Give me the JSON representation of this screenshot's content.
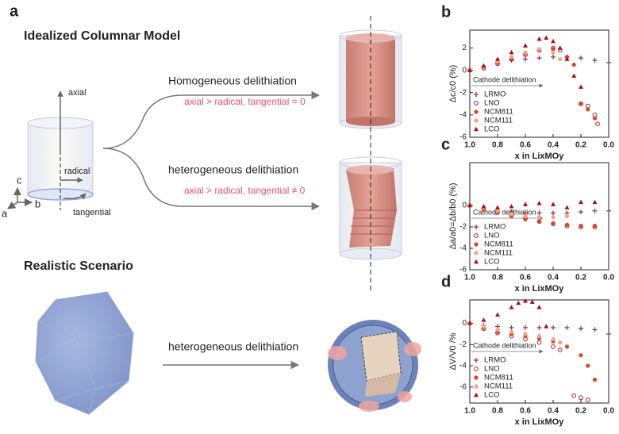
{
  "diagram": {
    "panel": "a",
    "title_top": "Idealized Columnar Model",
    "title_bottom": "Realistic Scenario",
    "homogeneous": "Homogeneous delithiation",
    "homogeneous_note": "axial > radical, tangential = 0",
    "heterogeneous": "heterogeneous delithiation",
    "heterogeneous_note": "axial > radical, tangential ≠ 0",
    "realistic_arrow": "heterogeneous delithiation",
    "axial": "axial",
    "radical": "radical",
    "tangential": "tangential",
    "axis_c": "c",
    "axis_b": "b",
    "axis_a": "a"
  },
  "chart_data": [
    {
      "type": "scatter",
      "panel": "b",
      "ylabel": "Δc/c0 (%)",
      "xlabel": "x in LixMOy",
      "annotation": "Cathode delithiation",
      "xlim": [
        1.0,
        0.0
      ],
      "xticks": [
        {
          "value": 1,
          "label": "1.0"
        },
        0.8,
        0.6,
        0.4,
        0.2,
        {
          "value": 0,
          "label": "0.0"
        }
      ],
      "ylim": [
        -6,
        3.6
      ],
      "yticks": [
        2,
        0,
        -2,
        -4,
        -6
      ],
      "legend": "lower left",
      "series": [
        {
          "name": "LRMO",
          "color": "#8b3a62",
          "marker": "plus",
          "x": [
            1.0,
            0.9,
            0.8,
            0.7,
            0.6,
            0.5,
            0.4,
            0.3,
            0.2,
            0.1,
            0.0
          ],
          "values": [
            0,
            0.3,
            0.6,
            0.9,
            1.0,
            1.1,
            1.2,
            1.2,
            1.1,
            0.9,
            0.7
          ]
        },
        {
          "name": "LNO",
          "color": "#a8182a",
          "marker": "open-circle",
          "x": [
            1.0,
            0.9,
            0.8,
            0.7,
            0.6,
            0.5,
            0.4,
            0.35,
            0.2,
            0.15,
            0.1,
            0.08
          ],
          "values": [
            0,
            0.2,
            0.6,
            1.0,
            1.4,
            1.8,
            2.0,
            1.8,
            -3.0,
            -3.2,
            -4.0,
            -4.8
          ]
        },
        {
          "name": "NCM811",
          "color": "#d9472b",
          "marker": "circle",
          "x": [
            1.0,
            0.9,
            0.8,
            0.7,
            0.6,
            0.5,
            0.4,
            0.3,
            0.25,
            0.2,
            0.15,
            0.1
          ],
          "values": [
            0,
            0.3,
            0.7,
            1.1,
            1.5,
            1.8,
            1.9,
            1.2,
            0.5,
            -3.0,
            -3.5,
            -4.3
          ]
        },
        {
          "name": "NCM111",
          "color": "#f4a582",
          "marker": "circle",
          "x": [
            1.0,
            0.9,
            0.8,
            0.7,
            0.6,
            0.5,
            0.4,
            0.35
          ],
          "values": [
            0,
            0.3,
            0.8,
            1.2,
            1.6,
            1.9,
            1.6,
            1.0
          ]
        },
        {
          "name": "LCO",
          "color": "#a50f15",
          "marker": "triangle",
          "x": [
            1.0,
            0.9,
            0.8,
            0.7,
            0.6,
            0.5,
            0.45,
            0.4,
            0.35,
            0.3,
            0.25,
            0.2
          ],
          "values": [
            0,
            0.4,
            1.0,
            1.6,
            2.2,
            2.8,
            2.9,
            2.6,
            2.0,
            1.0,
            -0.5,
            -1.5
          ]
        }
      ]
    },
    {
      "type": "scatter",
      "panel": "c",
      "ylabel": "Δa/a0=Δb/b0 (%)",
      "xlabel": "x in LixMOy",
      "annotation": "Cathode delithiation",
      "xlim": [
        1.0,
        0.0
      ],
      "xticks": [
        {
          "value": 1,
          "label": "1.0"
        },
        0.8,
        0.6,
        0.4,
        0.2,
        {
          "value": 0,
          "label": "0.0"
        }
      ],
      "ylim": [
        -6,
        4
      ],
      "yticks": [
        0,
        -2,
        -4,
        -6
      ],
      "legend": "lower left",
      "series": [
        {
          "name": "LRMO",
          "color": "#8b3a62",
          "marker": "plus",
          "x": [
            1.0,
            0.9,
            0.8,
            0.7,
            0.6,
            0.5,
            0.4,
            0.3,
            0.2,
            0.1,
            0.0
          ],
          "values": [
            0,
            -0.3,
            -0.5,
            -0.6,
            -0.7,
            -0.7,
            -0.7,
            -0.7,
            -0.6,
            -0.5,
            -0.5
          ]
        },
        {
          "name": "LNO",
          "color": "#a8182a",
          "marker": "open-circle",
          "x": [
            1.0,
            0.9,
            0.8,
            0.7,
            0.6,
            0.5,
            0.4,
            0.3,
            0.2,
            0.1
          ],
          "values": [
            0,
            -0.3,
            -0.6,
            -0.9,
            -1.2,
            -1.5,
            -1.7,
            -1.9,
            -2.0,
            -2.0
          ]
        },
        {
          "name": "NCM811",
          "color": "#d9472b",
          "marker": "circle",
          "x": [
            1.0,
            0.9,
            0.8,
            0.7,
            0.6,
            0.5,
            0.4,
            0.3,
            0.2,
            0.1
          ],
          "values": [
            0,
            -0.4,
            -0.7,
            -1.0,
            -1.3,
            -1.5,
            -1.7,
            -1.8,
            -1.9,
            -1.9
          ]
        },
        {
          "name": "NCM111",
          "color": "#f4a582",
          "marker": "circle",
          "x": [
            1.0,
            0.9,
            0.8,
            0.7,
            0.6,
            0.5,
            0.4,
            0.3
          ],
          "values": [
            0,
            -0.2,
            -0.5,
            -0.8,
            -1.0,
            -1.1,
            -1.1,
            -1.0
          ]
        },
        {
          "name": "LCO",
          "color": "#a50f15",
          "marker": "triangle",
          "x": [
            1.0,
            0.9,
            0.8,
            0.7,
            0.6,
            0.5,
            0.4,
            0.3,
            0.2,
            0.1
          ],
          "values": [
            0,
            -0.1,
            -0.2,
            -0.1,
            0.1,
            0.2,
            0.1,
            -0.2,
            0.3,
            0.3
          ]
        }
      ]
    },
    {
      "type": "scatter",
      "panel": "d",
      "ylabel": "ΔV/V0 /%",
      "xlabel": "x in LixMOy",
      "annotation": "Cathode delithiation",
      "xlim": [
        1.0,
        0.0
      ],
      "xticks": [
        {
          "value": 1,
          "label": "1.0"
        },
        0.8,
        0.6,
        0.4,
        0.2,
        {
          "value": 0,
          "label": "0.0"
        }
      ],
      "ylim": [
        -7.5,
        2.2
      ],
      "yticks": [
        0,
        -2,
        -4,
        -6
      ],
      "legend": "lower left",
      "series": [
        {
          "name": "LRMO",
          "color": "#8b3a62",
          "marker": "plus",
          "x": [
            1.0,
            0.9,
            0.8,
            0.7,
            0.6,
            0.5,
            0.4,
            0.3,
            0.2,
            0.1,
            0.0
          ],
          "values": [
            0,
            -0.2,
            -0.3,
            -0.4,
            -0.4,
            -0.4,
            -0.4,
            -0.4,
            -0.5,
            -0.6,
            -1.0
          ]
        },
        {
          "name": "LNO",
          "color": "#a8182a",
          "marker": "open-circle",
          "x": [
            1.0,
            0.9,
            0.8,
            0.7,
            0.6,
            0.5,
            0.4,
            0.35,
            0.25,
            0.2,
            0.15
          ],
          "values": [
            0,
            -0.5,
            -0.9,
            -1.2,
            -1.5,
            -1.8,
            -2.2,
            -2.5,
            -6.8,
            -7.0,
            -7.2
          ]
        },
        {
          "name": "NCM811",
          "color": "#d9472b",
          "marker": "circle",
          "x": [
            1.0,
            0.9,
            0.8,
            0.7,
            0.6,
            0.5,
            0.4,
            0.3,
            0.2,
            0.15,
            0.1
          ],
          "values": [
            0,
            -0.4,
            -0.8,
            -1.0,
            -1.2,
            -1.4,
            -1.7,
            -2.2,
            -3.0,
            -4.0,
            -5.3
          ]
        },
        {
          "name": "NCM111",
          "color": "#f4a582",
          "marker": "circle",
          "x": [
            1.0,
            0.9,
            0.8,
            0.7,
            0.6,
            0.5,
            0.4,
            0.35
          ],
          "values": [
            0,
            -0.3,
            -0.6,
            -0.8,
            -1.0,
            -1.2,
            -1.5,
            -1.8
          ]
        },
        {
          "name": "LCO",
          "color": "#a50f15",
          "marker": "triangle",
          "x": [
            1.0,
            0.9,
            0.8,
            0.7,
            0.65,
            0.6,
            0.55,
            0.5,
            0.45
          ],
          "values": [
            0,
            0.3,
            0.8,
            1.5,
            1.9,
            2.1,
            2.0,
            1.5,
            -0.3
          ]
        }
      ]
    }
  ]
}
